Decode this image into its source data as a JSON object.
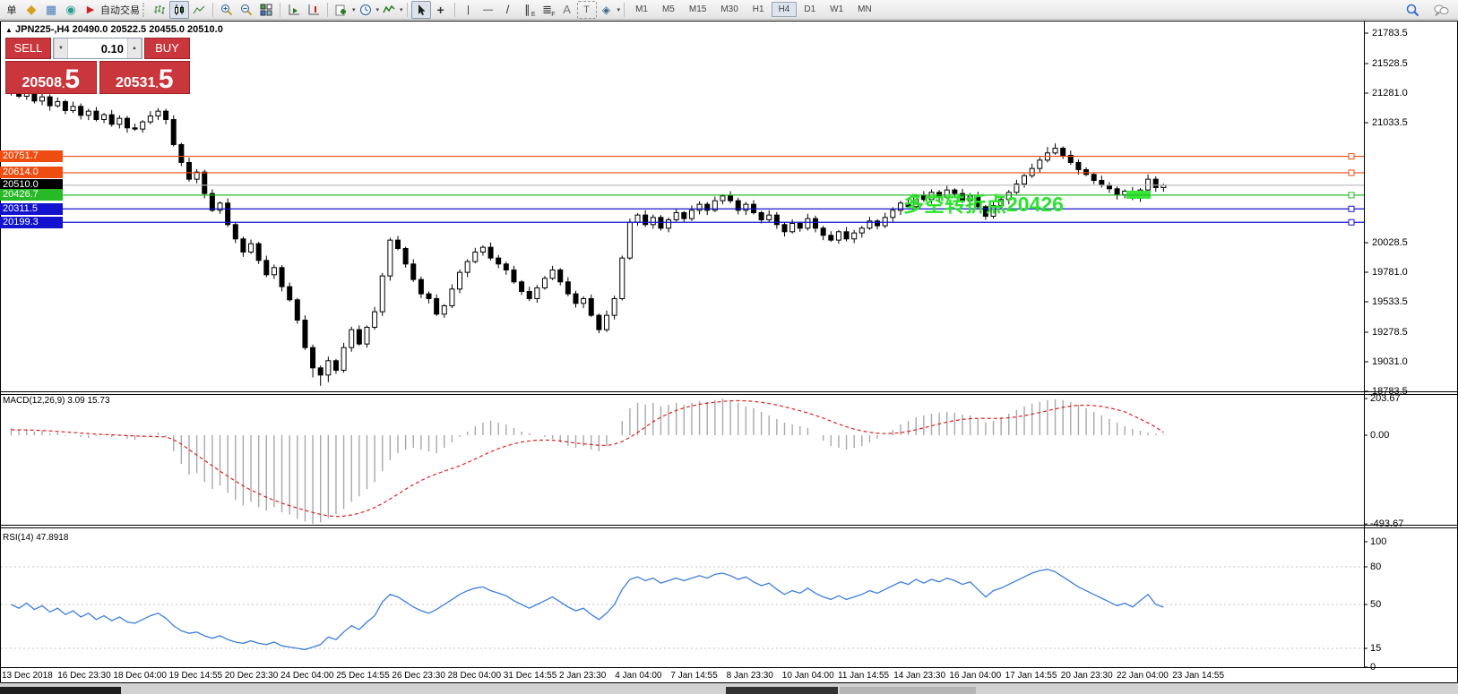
{
  "toolbar": {
    "glyphs": {
      "order": "单",
      "tag": "◆",
      "profile": "▦",
      "signal": "◉",
      "play": "▶",
      "autotrade": "自动交易",
      "caret": "▾",
      "crosshair": "+",
      "vline": "|",
      "hline": "—",
      "trend": "/",
      "channel": "∥",
      "channel_sub": "E",
      "fibo": "≣",
      "fibo_sub": "F",
      "text": "A",
      "label": "T",
      "shapes": "◈"
    },
    "timeframes": [
      "M1",
      "M5",
      "M15",
      "M30",
      "H1",
      "H4",
      "D1",
      "W1",
      "MN"
    ],
    "active_timeframe": "H4"
  },
  "chart": {
    "collapse_glyph": "▲",
    "symbol": "JPN225-,H4",
    "ohlc": "20490.0 20522.5 20455.0 20510.0",
    "annotation": "多空转折点20426",
    "trade_panel": {
      "sell_label": "SELL",
      "buy_label": "BUY",
      "volume": "0.10",
      "down_glyph": "▼",
      "up_glyph": "▲",
      "sell_big": "20508",
      "sell_dot": ".",
      "sell_pip": "5",
      "buy_big": "20531",
      "buy_dot": ".",
      "buy_pip": "5"
    }
  },
  "macd": {
    "label": "MACD(12,26,9) 3.09 15.73"
  },
  "rsi": {
    "label": "RSI(14) 47.8918"
  },
  "axis": {
    "price_ticks": [
      "21783.5",
      "21528.5",
      "21281.0",
      "21033.5",
      "20028.5",
      "19781.0",
      "19533.5",
      "19278.5",
      "19031.0",
      "18783.5"
    ],
    "macd_ticks": [
      {
        "label": "203.67",
        "v": 203.67
      },
      {
        "label": "0.00",
        "v": 0
      },
      {
        "label": "-493.67",
        "v": -493.67
      }
    ],
    "rsi_ticks": [
      {
        "label": "100",
        "v": 100,
        "dashed": false
      },
      {
        "label": "80",
        "v": 80,
        "dashed": true
      },
      {
        "label": "50",
        "v": 50,
        "dashed": true
      },
      {
        "label": "15",
        "v": 15,
        "dashed": true
      },
      {
        "label": "0",
        "v": 0,
        "dashed": false
      }
    ],
    "time_labels": [
      "13 Dec 2018",
      "16 Dec 23:30",
      "18 Dec 04:00",
      "19 Dec 14:55",
      "20 Dec 23:30",
      "24 Dec 04:00",
      "25 Dec 14:55",
      "26 Dec 23:30",
      "28 Dec 04:00",
      "31 Dec 14:55",
      "2 Jan 23:30",
      "4 Jan 04:00",
      "7 Jan 14:55",
      "8 Jan 23:30",
      "10 Jan 04:00",
      "11 Jan 14:55",
      "14 Jan 23:30",
      "16 Jan 04:00",
      "17 Jan 14:55",
      "20 Jan 23:30",
      "22 Jan 04:00",
      "23 Jan 14:55"
    ]
  },
  "chart_data": {
    "type": "candlestick",
    "symbol": "JPN225-",
    "period": "H4",
    "levels": [
      {
        "label": "20751.7",
        "value": 20751.7,
        "color": "#ee4d12",
        "tag_bg": "#ee4d12",
        "handle": true
      },
      {
        "label": "20614.0",
        "value": 20614.0,
        "color": "#ee4d12",
        "tag_bg": "#ee4d12",
        "handle": true
      },
      {
        "label": "20510.0",
        "value": 20510.0,
        "color": "#b8b8b8",
        "tag_bg": "#000000",
        "handle": false
      },
      {
        "label": "20426.7",
        "value": 20426.7,
        "color": "#26bb26",
        "tag_bg": "#26bb26",
        "handle": true
      },
      {
        "label": "20311.5",
        "value": 20311.5,
        "color": "#1212cf",
        "tag_bg": "#1212cf",
        "handle": true
      },
      {
        "label": "20199.3",
        "value": 20199.3,
        "color": "#1212cf",
        "tag_bg": "#1212cf",
        "handle": true
      }
    ],
    "highlight_rect": {
      "price": 20426.7,
      "color": "#35e835"
    },
    "candles": [
      [
        21330,
        21350,
        21260,
        21300
      ],
      [
        21300,
        21335,
        21240,
        21255
      ],
      [
        21255,
        21305,
        21225,
        21290
      ],
      [
        21290,
        21330,
        21195,
        21215
      ],
      [
        21215,
        21275,
        21180,
        21250
      ],
      [
        21250,
        21270,
        21135,
        21175
      ],
      [
        21175,
        21245,
        21160,
        21210
      ],
      [
        21210,
        21225,
        21105,
        21135
      ],
      [
        21135,
        21210,
        21115,
        21170
      ],
      [
        21170,
        21195,
        21060,
        21095
      ],
      [
        21095,
        21150,
        21055,
        21130
      ],
      [
        21130,
        21165,
        21045,
        21060
      ],
      [
        21060,
        21115,
        21030,
        21100
      ],
      [
        21100,
        21140,
        21000,
        21020
      ],
      [
        21020,
        21095,
        20985,
        21070
      ],
      [
        21070,
        21090,
        20950,
        20990
      ],
      [
        20990,
        21025,
        20965,
        20980
      ],
      [
        20980,
        21055,
        20950,
        21040
      ],
      [
        21040,
        21130,
        21020,
        21090
      ],
      [
        21090,
        21155,
        21055,
        21130
      ],
      [
        21130,
        21150,
        21020,
        21060
      ],
      [
        21060,
        21095,
        20835,
        20850
      ],
      [
        20850,
        20865,
        20670,
        20700
      ],
      [
        20700,
        20740,
        20540,
        20560
      ],
      [
        20560,
        20645,
        20525,
        20620
      ],
      [
        20620,
        20640,
        20400,
        20440
      ],
      [
        20440,
        20475,
        20285,
        20300
      ],
      [
        20300,
        20375,
        20270,
        20360
      ],
      [
        20360,
        20400,
        20160,
        20180
      ],
      [
        20180,
        20205,
        20025,
        20060
      ],
      [
        20060,
        20080,
        19910,
        19950
      ],
      [
        19950,
        20055,
        19935,
        20020
      ],
      [
        20020,
        20035,
        19850,
        19880
      ],
      [
        19880,
        19920,
        19740,
        19760
      ],
      [
        19760,
        19845,
        19725,
        19820
      ],
      [
        19820,
        19840,
        19620,
        19660
      ],
      [
        19660,
        19695,
        19535,
        19550
      ],
      [
        19550,
        19565,
        19350,
        19380
      ],
      [
        19380,
        19420,
        19130,
        19150
      ],
      [
        19150,
        19175,
        18900,
        18980
      ],
      [
        18980,
        19000,
        18830,
        18920
      ],
      [
        18920,
        19075,
        18860,
        19040
      ],
      [
        19040,
        19055,
        18930,
        18960
      ],
      [
        18960,
        19190,
        18940,
        19150
      ],
      [
        19150,
        19325,
        19115,
        19300
      ],
      [
        19300,
        19335,
        19165,
        19180
      ],
      [
        19180,
        19335,
        19150,
        19320
      ],
      [
        19320,
        19490,
        19300,
        19450
      ],
      [
        19450,
        19775,
        19415,
        19750
      ],
      [
        19750,
        20070,
        19710,
        20050
      ],
      [
        20050,
        20085,
        19965,
        19980
      ],
      [
        19980,
        19995,
        19820,
        19850
      ],
      [
        19850,
        19890,
        19700,
        19720
      ],
      [
        19720,
        19745,
        19565,
        19600
      ],
      [
        19600,
        19620,
        19520,
        19560
      ],
      [
        19560,
        19595,
        19415,
        19430
      ],
      [
        19430,
        19515,
        19400,
        19500
      ],
      [
        19500,
        19680,
        19480,
        19640
      ],
      [
        19640,
        19805,
        19605,
        19780
      ],
      [
        19780,
        19890,
        19740,
        19870
      ],
      [
        19870,
        19985,
        19855,
        19950
      ],
      [
        19950,
        20005,
        19920,
        19990
      ],
      [
        19990,
        20030,
        19880,
        19900
      ],
      [
        19900,
        19925,
        19815,
        19850
      ],
      [
        19850,
        19870,
        19760,
        19800
      ],
      [
        19800,
        19835,
        19685,
        19700
      ],
      [
        19700,
        19715,
        19590,
        19620
      ],
      [
        19620,
        19660,
        19540,
        19560
      ],
      [
        19560,
        19675,
        19525,
        19650
      ],
      [
        19650,
        19750,
        19635,
        19730
      ],
      [
        19730,
        19835,
        19715,
        19800
      ],
      [
        19800,
        19815,
        19670,
        19700
      ],
      [
        19700,
        19740,
        19580,
        19600
      ],
      [
        19600,
        19625,
        19485,
        19520
      ],
      [
        19520,
        19580,
        19480,
        19560
      ],
      [
        19560,
        19595,
        19405,
        19420
      ],
      [
        19420,
        19435,
        19270,
        19300
      ],
      [
        19300,
        19460,
        19280,
        19420
      ],
      [
        19420,
        19585,
        19385,
        19560
      ],
      [
        19560,
        19920,
        19545,
        19900
      ],
      [
        19900,
        20230,
        19885,
        20200
      ],
      [
        20200,
        20275,
        20170,
        20260
      ],
      [
        20260,
        20300,
        20160,
        20180
      ],
      [
        20180,
        20265,
        20145,
        20240
      ],
      [
        20240,
        20260,
        20130,
        20150
      ],
      [
        20150,
        20240,
        20115,
        20220
      ],
      [
        20220,
        20315,
        20205,
        20280
      ],
      [
        20280,
        20295,
        20200,
        20230
      ],
      [
        20230,
        20340,
        20210,
        20300
      ],
      [
        20300,
        20375,
        20265,
        20350
      ],
      [
        20350,
        20370,
        20260,
        20300
      ],
      [
        20300,
        20415,
        20285,
        20380
      ],
      [
        20380,
        20435,
        20350,
        20420
      ],
      [
        20420,
        20460,
        20360,
        20380
      ],
      [
        20380,
        20405,
        20265,
        20300
      ],
      [
        20300,
        20370,
        20260,
        20350
      ],
      [
        20350,
        20385,
        20265,
        20280
      ],
      [
        20280,
        20295,
        20190,
        20220
      ],
      [
        20220,
        20300,
        20200,
        20260
      ],
      [
        20260,
        20285,
        20145,
        20180
      ],
      [
        20180,
        20200,
        20080,
        20120
      ],
      [
        20120,
        20225,
        20105,
        20190
      ],
      [
        20190,
        20205,
        20120,
        20150
      ],
      [
        20150,
        20270,
        20130,
        20230
      ],
      [
        20230,
        20255,
        20115,
        20150
      ],
      [
        20150,
        20170,
        20050,
        20090
      ],
      [
        20090,
        20125,
        20035,
        20050
      ],
      [
        20050,
        20135,
        20020,
        20120
      ],
      [
        20120,
        20160,
        20040,
        20060
      ],
      [
        20060,
        20135,
        20025,
        20110
      ],
      [
        20110,
        20170,
        20070,
        20150
      ],
      [
        20150,
        20245,
        20135,
        20210
      ],
      [
        20210,
        20225,
        20140,
        20170
      ],
      [
        20170,
        20280,
        20150,
        20240
      ],
      [
        20240,
        20325,
        20205,
        20300
      ],
      [
        20300,
        20380,
        20260,
        20360
      ],
      [
        20360,
        20395,
        20315,
        20330
      ],
      [
        20330,
        20435,
        20300,
        20420
      ],
      [
        20420,
        20460,
        20370,
        20390
      ],
      [
        20390,
        20475,
        20355,
        20450
      ],
      [
        20450,
        20470,
        20370,
        20410
      ],
      [
        20410,
        20505,
        20395,
        20470
      ],
      [
        20470,
        20485,
        20410,
        20440
      ],
      [
        20440,
        20480,
        20360,
        20380
      ],
      [
        20380,
        20445,
        20345,
        20420
      ],
      [
        20420,
        20455,
        20315,
        20330
      ],
      [
        20330,
        20345,
        20220,
        20250
      ],
      [
        20250,
        20380,
        20230,
        20340
      ],
      [
        20340,
        20415,
        20305,
        20390
      ],
      [
        20390,
        20470,
        20350,
        20450
      ],
      [
        20450,
        20555,
        20435,
        20520
      ],
      [
        20520,
        20605,
        20490,
        20590
      ],
      [
        20590,
        20690,
        20570,
        20650
      ],
      [
        20650,
        20745,
        20615,
        20720
      ],
      [
        20720,
        20830,
        20700,
        20780
      ],
      [
        20780,
        20860,
        20765,
        20820
      ],
      [
        20820,
        20835,
        20730,
        20760
      ],
      [
        20760,
        20800,
        20680,
        20700
      ],
      [
        20700,
        20725,
        20600,
        20640
      ],
      [
        20640,
        20660,
        20585,
        20600
      ],
      [
        20600,
        20615,
        20520,
        20550
      ],
      [
        20550,
        20590,
        20490,
        20510
      ],
      [
        20510,
        20535,
        20445,
        20480
      ],
      [
        20480,
        20500,
        20390,
        20430
      ],
      [
        20430,
        20475,
        20400,
        20460
      ],
      [
        20460,
        20495,
        20385,
        20400
      ],
      [
        20400,
        20485,
        20370,
        20470
      ],
      [
        20470,
        20600,
        20450,
        20560
      ],
      [
        20560,
        20585,
        20455,
        20490
      ],
      [
        20490,
        20522.5,
        20455,
        20510
      ]
    ],
    "macd_histogram": [
      40,
      30,
      35,
      20,
      25,
      10,
      15,
      -5,
      0,
      -10,
      -15,
      -5,
      5,
      -10,
      0,
      -20,
      -25,
      -10,
      5,
      15,
      -10,
      -90,
      -160,
      -220,
      -210,
      -260,
      -300,
      -280,
      -320,
      -360,
      -390,
      -370,
      -400,
      -420,
      -400,
      -430,
      -440,
      -465,
      -480,
      -493.67,
      -485,
      -460,
      -440,
      -410,
      -370,
      -340,
      -300,
      -260,
      -200,
      -140,
      -100,
      -80,
      -70,
      -80,
      -90,
      -100,
      -70,
      -40,
      -10,
      20,
      50,
      70,
      80,
      70,
      60,
      40,
      20,
      10,
      0,
      -10,
      -20,
      -40,
      -60,
      -70,
      -60,
      -80,
      -90,
      -60,
      0,
      80,
      150,
      180,
      170,
      180,
      160,
      170,
      180,
      170,
      180,
      190,
      185,
      195,
      203.67,
      195,
      180,
      160,
      150,
      130,
      110,
      90,
      70,
      60,
      50,
      40,
      0,
      -30,
      -60,
      -70,
      -80,
      -70,
      -60,
      -40,
      -20,
      0,
      30,
      60,
      80,
      100,
      110,
      120,
      125,
      130,
      125,
      115,
      110,
      90,
      70,
      80,
      100,
      120,
      140,
      160,
      175,
      185,
      195,
      200,
      195,
      185,
      170,
      150,
      130,
      110,
      90,
      70,
      50,
      35,
      25,
      15,
      8,
      3.09
    ],
    "macd_signal": [
      30,
      30,
      29,
      28,
      26,
      24,
      21,
      18,
      15,
      12,
      9,
      6,
      4,
      2,
      0,
      -2,
      -4,
      -6,
      -7,
      -8,
      -9,
      -25,
      -50,
      -80,
      -110,
      -140,
      -170,
      -200,
      -228,
      -255,
      -282,
      -305,
      -325,
      -345,
      -362,
      -378,
      -392,
      -405,
      -418,
      -430,
      -440,
      -448,
      -452,
      -450,
      -444,
      -434,
      -420,
      -402,
      -380,
      -355,
      -328,
      -300,
      -275,
      -252,
      -232,
      -215,
      -200,
      -185,
      -170,
      -152,
      -132,
      -112,
      -92,
      -75,
      -60,
      -48,
      -38,
      -32,
      -28,
      -27,
      -28,
      -32,
      -38,
      -44,
      -48,
      -52,
      -56,
      -57,
      -50,
      -35,
      -12,
      15,
      45,
      75,
      100,
      120,
      138,
      152,
      163,
      172,
      178,
      183,
      188,
      191,
      192,
      191,
      188,
      183,
      176,
      168,
      158,
      147,
      136,
      124,
      110,
      95,
      78,
      62,
      47,
      34,
      24,
      16,
      11,
      9,
      10,
      14,
      21,
      30,
      41,
      52,
      63,
      73,
      81,
      88,
      92,
      94,
      94,
      93,
      94,
      97,
      102,
      109,
      117,
      126,
      136,
      146,
      155,
      162,
      166,
      167,
      165,
      160,
      152,
      142,
      130,
      110,
      90,
      68,
      45,
      15.73
    ],
    "rsi_values": [
      50,
      47,
      51,
      46,
      49,
      44,
      47,
      42,
      45,
      40,
      43,
      38,
      41,
      37,
      40,
      36,
      35,
      38,
      41,
      43,
      39,
      33,
      29,
      27,
      28,
      25,
      23,
      25,
      22,
      20,
      19,
      21,
      19,
      18,
      20,
      17,
      16,
      15,
      14,
      16,
      18,
      24,
      22,
      28,
      33,
      30,
      36,
      41,
      52,
      58,
      56,
      52,
      48,
      45,
      43,
      46,
      50,
      54,
      58,
      61,
      63,
      64,
      61,
      59,
      57,
      53,
      50,
      47,
      50,
      53,
      56,
      52,
      48,
      45,
      47,
      42,
      38,
      43,
      50,
      62,
      70,
      72,
      69,
      71,
      67,
      69,
      71,
      69,
      71,
      73,
      71,
      74,
      75,
      73,
      70,
      72,
      68,
      65,
      67,
      62,
      58,
      61,
      59,
      63,
      59,
      56,
      54,
      57,
      54,
      56,
      58,
      61,
      59,
      62,
      65,
      68,
      66,
      70,
      67,
      70,
      68,
      71,
      69,
      66,
      68,
      62,
      56,
      61,
      63,
      66,
      69,
      72,
      75,
      77,
      78,
      76,
      72,
      68,
      64,
      61,
      58,
      55,
      52,
      49,
      51,
      48,
      53,
      58,
      50,
      47.89
    ]
  }
}
